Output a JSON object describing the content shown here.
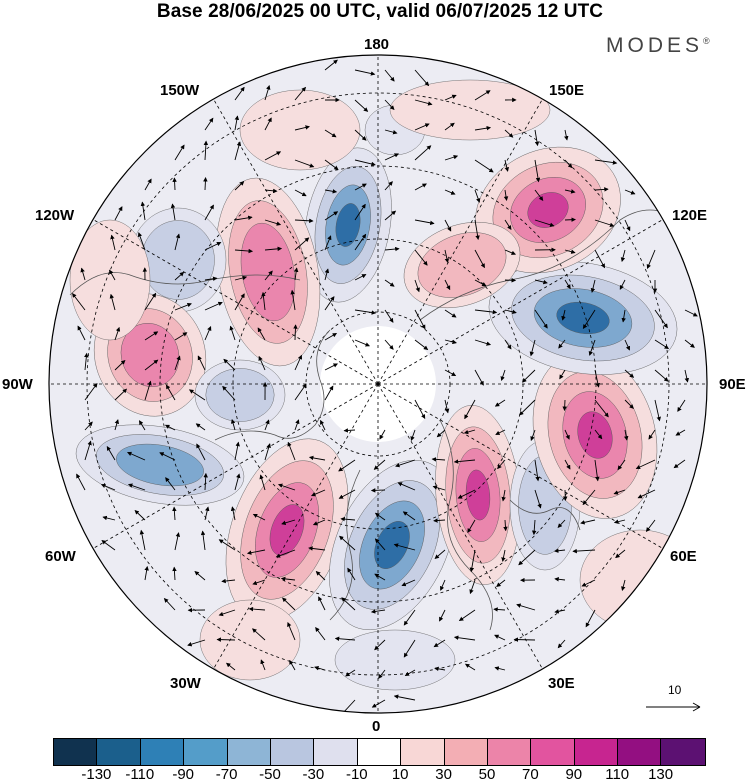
{
  "title": "Base 28/06/2025 00 UTC, valid 06/07/2025 12 UTC",
  "brand": "MODES",
  "brand_mark": "®",
  "longitude_labels": {
    "top": "180",
    "bottom": "0",
    "left": "90W",
    "right": "90E",
    "upper_left_1": "150W",
    "upper_left_2": "120W",
    "lower_left_1": "60W",
    "lower_left_2": "30W",
    "upper_right_1": "150E",
    "upper_right_2": "120E",
    "lower_right_1": "60E",
    "lower_right_2": "30E"
  },
  "reference_vector": {
    "label": "10"
  },
  "colorbar": {
    "colors": [
      "#10324f",
      "#1b5f8c",
      "#2e80b6",
      "#549dc9",
      "#8eb5d6",
      "#b9c6e0",
      "#dfe0ee",
      "#ffffff",
      "#f8d7d6",
      "#f3aeb4",
      "#ec84a9",
      "#e2549f",
      "#c72590",
      "#930f81",
      "#5c1172"
    ],
    "ticks": [
      "-130",
      "-110",
      "-90",
      "-70",
      "-50",
      "-30",
      "-10",
      "10",
      "30",
      "50",
      "70",
      "90",
      "110",
      "130"
    ]
  },
  "colors": {
    "neg_strong": "#2e6ea6",
    "neg_mid": "#7ea8cf",
    "neg_light": "#c7cfe4",
    "neg_pale": "#e3e4f0",
    "pos_pale": "#f6dede",
    "pos_light": "#f2b8bf",
    "pos_mid": "#ea86ad",
    "pos_strong": "#cf3f99"
  }
}
